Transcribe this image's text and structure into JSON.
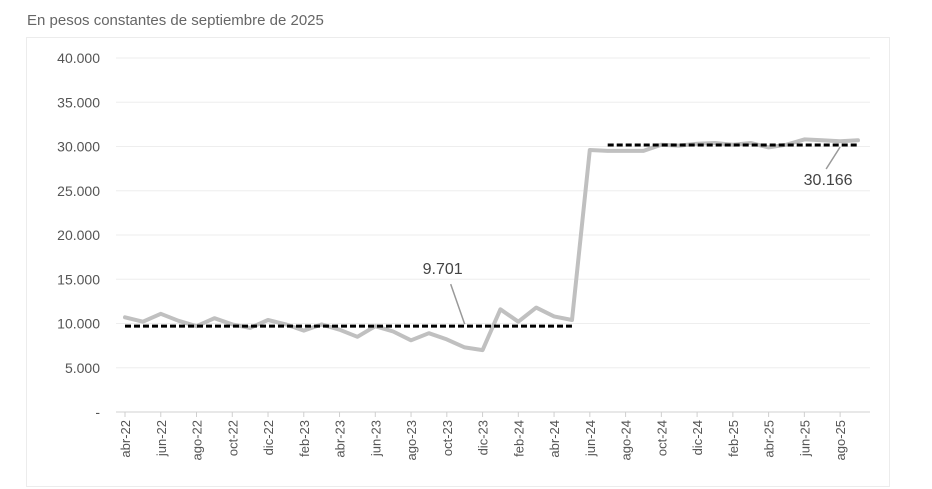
{
  "subtitle": "En pesos constantes de septiembre de 2025",
  "chart_data": {
    "type": "line",
    "ylim": [
      0,
      40000
    ],
    "yticks": [
      0,
      5000,
      10000,
      15000,
      20000,
      25000,
      30000,
      35000,
      40000
    ],
    "ytick_labels": [
      "-",
      "5.000",
      "10.000",
      "15.000",
      "20.000",
      "25.000",
      "30.000",
      "35.000",
      "40.000"
    ],
    "grid": "horizontal",
    "x": [
      "abr-22",
      "may-22",
      "jun-22",
      "jul-22",
      "ago-22",
      "sep-22",
      "oct-22",
      "nov-22",
      "dic-22",
      "ene-23",
      "feb-23",
      "mar-23",
      "abr-23",
      "may-23",
      "jun-23",
      "jul-23",
      "ago-23",
      "sep-23",
      "oct-23",
      "nov-23",
      "dic-23",
      "ene-24",
      "feb-24",
      "mar-24",
      "abr-24",
      "may-24",
      "jun-24",
      "jul-24",
      "ago-24",
      "sep-24",
      "oct-24",
      "nov-24",
      "dic-24",
      "ene-25",
      "feb-25",
      "mar-25",
      "abr-25",
      "may-25",
      "jun-25",
      "jul-25",
      "ago-25",
      "sep-25"
    ],
    "x_tick_labels": [
      "abr-22",
      "jun-22",
      "ago-22",
      "oct-22",
      "dic-22",
      "feb-23",
      "abr-23",
      "jun-23",
      "ago-23",
      "oct-23",
      "dic-23",
      "feb-24",
      "abr-24",
      "jun-24",
      "ago-24",
      "oct-24",
      "dic-24",
      "feb-25",
      "abr-25",
      "jun-25",
      "ago-25"
    ],
    "series": [
      {
        "color": "#c0c0c0",
        "style": "solid",
        "values": [
          10700,
          10200,
          11100,
          10300,
          9700,
          10600,
          9900,
          9500,
          10400,
          9900,
          9200,
          9900,
          9300,
          8500,
          9700,
          9100,
          8100,
          8900,
          8200,
          7300,
          7000,
          11600,
          10200,
          11800,
          10800,
          10400,
          29600,
          29500,
          29500,
          29500,
          30200,
          30100,
          30300,
          30400,
          30200,
          30400,
          29900,
          30200,
          30800,
          30700,
          30600,
          30700
        ]
      },
      {
        "color": "#000000",
        "style": "dashed",
        "segments": [
          {
            "from": "abr-22",
            "to": "may-24",
            "value": 9701
          },
          {
            "from": "jul-24",
            "to": "sep-25",
            "value": 30166
          }
        ]
      }
    ],
    "annotations": [
      {
        "text": "9.701",
        "at": "nov-23",
        "value": 9701
      },
      {
        "text": "30.166",
        "at": "ago-25",
        "value": 30166
      }
    ]
  }
}
